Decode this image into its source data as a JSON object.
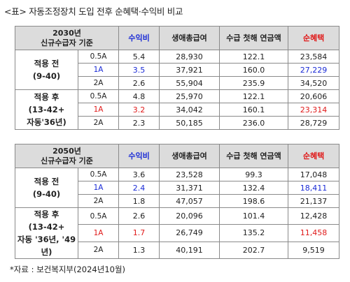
{
  "title": "<표> 자동조정장치 도입 전후 순혜택·수익비 비교",
  "columns": {
    "profit_ratio": "수익비",
    "lifetime_total": "생애총급여",
    "first_year_pension": "수급 첫해 연금액",
    "net_benefit": "순혜택"
  },
  "colors": {
    "blue": "#1a2bd6",
    "red": "#e01a1a",
    "header_bg": "#dcdcdc"
  },
  "table1": {
    "header_line1": "2030년",
    "header_line2": "신규수급자 기준",
    "groups": [
      {
        "label_lines": [
          "적용 전",
          "(9-40)"
        ],
        "rows": [
          {
            "income": "0.5A",
            "ratio": "5.4",
            "total": "28,930",
            "first": "122.1",
            "net": "23,584",
            "highlight": ""
          },
          {
            "income": "1A",
            "ratio": "3.5",
            "total": "37,921",
            "first": "160.0",
            "net": "27,229",
            "highlight": "blue"
          },
          {
            "income": "2A",
            "ratio": "2.6",
            "total": "55,904",
            "first": "235.9",
            "net": "34,520",
            "highlight": ""
          }
        ]
      },
      {
        "label_lines": [
          "적용 후",
          "(13-42+",
          "자동'36년)"
        ],
        "rows": [
          {
            "income": "0.5A",
            "ratio": "4.8",
            "total": "25,970",
            "first": "122.1",
            "net": "20,606",
            "highlight": ""
          },
          {
            "income": "1A",
            "ratio": "3.2",
            "total": "34,042",
            "first": "160.1",
            "net": "23,314",
            "highlight": "red"
          },
          {
            "income": "2A",
            "ratio": "2.3",
            "total": "50,185",
            "first": "236.0",
            "net": "28,729",
            "highlight": ""
          }
        ]
      }
    ]
  },
  "table2": {
    "header_line1": "2050년",
    "header_line2": "신규수급자 기준",
    "groups": [
      {
        "label_lines": [
          "적용 전",
          "(9-40)"
        ],
        "rows": [
          {
            "income": "0.5A",
            "ratio": "3.6",
            "total": "23,528",
            "first": "99.3",
            "net": "17,048",
            "highlight": ""
          },
          {
            "income": "1A",
            "ratio": "2.4",
            "total": "31,371",
            "first": "132.4",
            "net": "18,411",
            "highlight": "blue"
          },
          {
            "income": "2A",
            "ratio": "1.8",
            "total": "47,057",
            "first": "198.6",
            "net": "21,137",
            "highlight": ""
          }
        ]
      },
      {
        "label_lines": [
          "적용 후",
          "(13-42+",
          "자동 '36년, '49년)"
        ],
        "rows": [
          {
            "income": "0.5A",
            "ratio": "2.6",
            "total": "20,096",
            "first": "101.4",
            "net": "12,428",
            "highlight": ""
          },
          {
            "income": "1A",
            "ratio": "1.7",
            "total": "26,749",
            "first": "135.2",
            "net": "11,458",
            "highlight": "red"
          },
          {
            "income": "2A",
            "ratio": "1.3",
            "total": "40,191",
            "first": "202.7",
            "net": "9,519",
            "highlight": ""
          }
        ]
      }
    ]
  },
  "source": "*자료 : 보건복지부(2024년10월)"
}
